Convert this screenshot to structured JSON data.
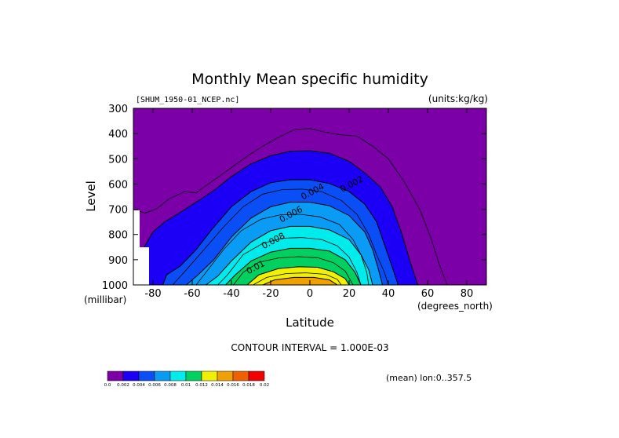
{
  "chart_data": {
    "type": "contour",
    "title": "Monthly Mean specific humidity",
    "file_label": "[SHUM_1950-01_NCEP.nc]",
    "units_label": "(units:kg/kg)",
    "xlabel": "Latitude",
    "ylabel": "Level",
    "x_units": "(degrees_north)",
    "y_units": "(millibar)",
    "xlim": [
      -90,
      90
    ],
    "ylim": [
      1000,
      300
    ],
    "x_ticks": [
      -80,
      -60,
      -40,
      -20,
      0,
      20,
      40,
      60,
      80
    ],
    "x_tick_labels": [
      "-80",
      "-60",
      "-40",
      "-20",
      "0",
      "20",
      "40",
      "60",
      "80"
    ],
    "y_ticks": [
      300,
      400,
      500,
      600,
      700,
      800,
      900,
      1000
    ],
    "y_tick_labels": [
      "300",
      "400",
      "500",
      "600",
      "700",
      "800",
      "900",
      "1000"
    ],
    "contour_interval_text": "CONTOUR INTERVAL = 1.000E-03",
    "footer_note": "(mean) lon:0..357.5",
    "contour_labels": [
      {
        "text": "0.002",
        "lat": 22,
        "level": 610
      },
      {
        "text": "0.004",
        "lat": 2,
        "level": 640
      },
      {
        "text": "0.006",
        "lat": -9,
        "level": 730
      },
      {
        "text": "0.008",
        "lat": -18,
        "level": 835
      },
      {
        "text": "0.01",
        "lat": -27,
        "level": 940
      }
    ],
    "colorbar": {
      "colors": [
        "#7b00a8",
        "#1c00f5",
        "#0a4ff5",
        "#0a9bf5",
        "#00ecec",
        "#00d060",
        "#f0f000",
        "#f0a000",
        "#f06000",
        "#f00000"
      ],
      "labels": [
        "0.0",
        "0.002",
        "0.004",
        "0.006",
        "0.008",
        "0.01",
        "0.012",
        "0.014",
        "0.016",
        "0.018",
        "0.02"
      ]
    },
    "contours": [
      {
        "value": 0.001,
        "color": "#1c00f5",
        "points": [
          [
            -84,
            1000
          ],
          [
            -86,
            870
          ],
          [
            -80,
            790
          ],
          [
            -74,
            750
          ],
          [
            -66,
            712
          ],
          [
            -58,
            672
          ],
          [
            -48,
            620
          ],
          [
            -40,
            570
          ],
          [
            -30,
            520
          ],
          [
            -20,
            488
          ],
          [
            -10,
            470
          ],
          [
            0,
            468
          ],
          [
            10,
            478
          ],
          [
            20,
            510
          ],
          [
            28,
            556
          ],
          [
            36,
            612
          ],
          [
            42,
            690
          ],
          [
            47,
            800
          ],
          [
            51,
            905
          ],
          [
            55,
            1000
          ]
        ]
      },
      {
        "value": 0.002,
        "color": "#0a4ff5",
        "points": [
          [
            -75,
            1000
          ],
          [
            -73,
            960
          ],
          [
            -66,
            925
          ],
          [
            -58,
            860
          ],
          [
            -50,
            780
          ],
          [
            -40,
            690
          ],
          [
            -30,
            630
          ],
          [
            -20,
            595
          ],
          [
            -10,
            583
          ],
          [
            0,
            583
          ],
          [
            10,
            598
          ],
          [
            20,
            630
          ],
          [
            28,
            680
          ],
          [
            34,
            750
          ],
          [
            38,
            840
          ],
          [
            42,
            930
          ],
          [
            45,
            1000
          ]
        ]
      },
      {
        "value": 0.003,
        "color": "#0a9bf5",
        "points": [
          [
            -63,
            1000
          ],
          [
            -57,
            960
          ],
          [
            -49,
            900
          ],
          [
            -40,
            810
          ],
          [
            -30,
            735
          ],
          [
            -20,
            690
          ],
          [
            -10,
            672
          ],
          [
            0,
            672
          ],
          [
            10,
            686
          ],
          [
            20,
            725
          ],
          [
            28,
            790
          ],
          [
            32,
            860
          ],
          [
            35,
            940
          ],
          [
            37,
            1000
          ]
        ]
      },
      {
        "value": 0.004,
        "color": "#00ecec",
        "points": [
          [
            -53,
            1000
          ],
          [
            -47,
            965
          ],
          [
            -40,
            905
          ],
          [
            -30,
            830
          ],
          [
            -20,
            785
          ],
          [
            -10,
            768
          ],
          [
            0,
            768
          ],
          [
            10,
            782
          ],
          [
            20,
            820
          ],
          [
            26,
            880
          ],
          [
            30,
            940
          ],
          [
            32,
            1000
          ]
        ]
      },
      {
        "value": 0.005,
        "color": "#00d060",
        "points": [
          [
            -43,
            1000
          ],
          [
            -38,
            960
          ],
          [
            -30,
            905
          ],
          [
            -20,
            870
          ],
          [
            -10,
            855
          ],
          [
            0,
            855
          ],
          [
            10,
            866
          ],
          [
            18,
            900
          ],
          [
            23,
            950
          ],
          [
            26,
            1000
          ]
        ]
      },
      {
        "value": 0.006,
        "color": "#f0f000",
        "points": [
          [
            -32,
            1000
          ],
          [
            -26,
            960
          ],
          [
            -16,
            935
          ],
          [
            -6,
            928
          ],
          [
            4,
            930
          ],
          [
            12,
            948
          ],
          [
            18,
            975
          ],
          [
            20,
            1000
          ]
        ]
      },
      {
        "value": 0.007,
        "color": "#f0a000",
        "points": [
          [
            -24,
            1000
          ],
          [
            -18,
            980
          ],
          [
            -8,
            970
          ],
          [
            2,
            970
          ],
          [
            10,
            980
          ],
          [
            14,
            1000
          ]
        ]
      }
    ],
    "outer_contour": {
      "value": 0.0001,
      "points": [
        [
          -90,
          710
        ],
        [
          -88,
          705
        ],
        [
          -84,
          715
        ],
        [
          -78,
          698
        ],
        [
          -72,
          660
        ],
        [
          -64,
          630
        ],
        [
          -58,
          635
        ],
        [
          -50,
          590
        ],
        [
          -40,
          535
        ],
        [
          -32,
          490
        ],
        [
          -24,
          450
        ],
        [
          -16,
          415
        ],
        [
          -8,
          385
        ],
        [
          0,
          380
        ],
        [
          8,
          395
        ],
        [
          16,
          405
        ],
        [
          24,
          410
        ],
        [
          32,
          450
        ],
        [
          40,
          500
        ],
        [
          48,
          590
        ],
        [
          56,
          700
        ],
        [
          62,
          820
        ],
        [
          66,
          920
        ],
        [
          70,
          1000
        ]
      ]
    },
    "extra_contour_lines": [
      {
        "points": [
          [
            -70,
            1000
          ],
          [
            -63,
            940
          ],
          [
            -54,
            860
          ],
          [
            -44,
            770
          ],
          [
            -34,
            690
          ],
          [
            -24,
            640
          ],
          [
            -14,
            622
          ],
          [
            -4,
            620
          ],
          [
            6,
            630
          ],
          [
            16,
            665
          ],
          [
            24,
            720
          ],
          [
            30,
            800
          ],
          [
            34,
            880
          ],
          [
            38,
            950
          ],
          [
            40,
            1000
          ]
        ]
      },
      {
        "points": [
          [
            -58,
            1000
          ],
          [
            -52,
            940
          ],
          [
            -44,
            860
          ],
          [
            -35,
            785
          ],
          [
            -25,
            740
          ],
          [
            -15,
            722
          ],
          [
            -5,
            720
          ],
          [
            5,
            730
          ],
          [
            15,
            760
          ],
          [
            22,
            820
          ],
          [
            26,
            880
          ],
          [
            29,
            950
          ],
          [
            30,
            1000
          ]
        ]
      },
      {
        "points": [
          [
            -47,
            1000
          ],
          [
            -42,
            960
          ],
          [
            -34,
            880
          ],
          [
            -24,
            835
          ],
          [
            -14,
            815
          ],
          [
            -4,
            812
          ],
          [
            6,
            820
          ],
          [
            14,
            845
          ],
          [
            20,
            890
          ],
          [
            24,
            950
          ],
          [
            26,
            1000
          ]
        ]
      },
      {
        "points": [
          [
            -39,
            1000
          ],
          [
            -34,
            950
          ],
          [
            -26,
            910
          ],
          [
            -16,
            893
          ],
          [
            -6,
            888
          ],
          [
            4,
            892
          ],
          [
            12,
            912
          ],
          [
            18,
            945
          ],
          [
            22,
            1000
          ]
        ]
      },
      {
        "points": [
          [
            -29,
            1000
          ],
          [
            -22,
            970
          ],
          [
            -12,
            955
          ],
          [
            -2,
            952
          ],
          [
            8,
            958
          ],
          [
            14,
            978
          ],
          [
            16,
            1000
          ]
        ]
      }
    ]
  }
}
